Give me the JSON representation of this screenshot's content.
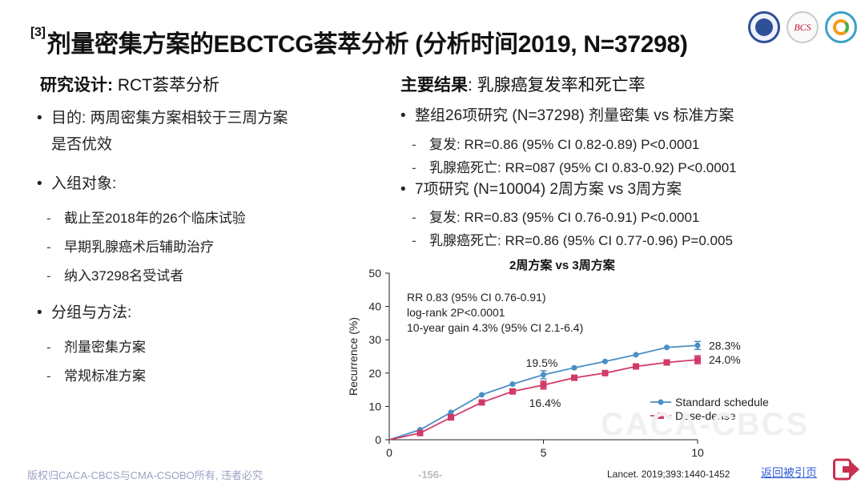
{
  "title": {
    "ref": "[3]",
    "text": "剂量密集方案的EBCTCG荟萃分析 (分析时间2019, N=37298)"
  },
  "logos": {
    "bcs_text": "BCS"
  },
  "left": {
    "design_label": "研究设计: ",
    "design_value": "RCT荟萃分析",
    "purpose_line1": "目的: 两周密集方案相较于三周方案",
    "purpose_line2": "是否优效",
    "subjects": "入组对象:",
    "subjects_items": [
      "截止至2018年的26个临床试验",
      "早期乳腺癌术后辅助治疗",
      "纳入37298名受试者"
    ],
    "groups": "分组与方法:",
    "groups_items": [
      "剂量密集方案",
      "常规标准方案"
    ]
  },
  "right": {
    "results_label": "主要结果",
    "results_value": ": 乳腺癌复发率和死亡率",
    "b1": "整组26项研究 (N=37298) 剂量密集 vs 标准方案",
    "b1_items": [
      "复发: RR=0.86 (95% CI 0.82-0.89) P<0.0001",
      "乳腺癌死亡: RR=087 (95% CI 0.83-0.92) P<0.0001"
    ],
    "b2": "7项研究 (N=10004) 2周方案 vs 3周方案",
    "b2_items": [
      "复发: RR=0.83 (95% CI 0.76-0.91) P<0.0001",
      "乳腺癌死亡: RR=0.86 (95% CI 0.77-0.96) P=0.005"
    ]
  },
  "chart_data": {
    "type": "line",
    "title": "2周方案 vs 3周方案",
    "ylabel": "Recurrence (%)",
    "xlabel": "",
    "xlim": [
      0,
      10
    ],
    "ylim": [
      0,
      50
    ],
    "xticks": [
      0,
      5,
      10
    ],
    "yticks": [
      0,
      10,
      20,
      30,
      40,
      50
    ],
    "annotations": [
      "RR 0.83 (95% CI 0.76-0.91)",
      "log-rank 2P<0.0001",
      "10-year gain 4.3% (95% CI 2.1-6.4)"
    ],
    "point_labels": [
      "19.5%",
      "16.4%",
      "28.3%",
      "24.0%"
    ],
    "series": [
      {
        "name": "Standard schedule",
        "color": "#4a8fc4",
        "marker": "circle",
        "x": [
          0,
          1,
          2,
          3,
          4,
          5,
          6,
          7,
          8,
          9,
          10
        ],
        "y": [
          0,
          3.0,
          8.2,
          13.5,
          16.7,
          19.5,
          21.6,
          23.5,
          25.5,
          27.7,
          28.3
        ]
      },
      {
        "name": "Dose-dense",
        "color": "#d23a66",
        "marker": "square",
        "x": [
          0,
          1,
          2,
          3,
          4,
          5,
          6,
          7,
          8,
          9,
          10
        ],
        "y": [
          0,
          2.0,
          6.7,
          11.2,
          14.5,
          16.4,
          18.6,
          20.0,
          22.0,
          23.2,
          24.0
        ]
      }
    ],
    "legend_position": "bottom-right"
  },
  "footer": {
    "copyright": "版权归CACA-CBCS与CMA-CSOBO所有, 违者必究",
    "page": "-156-",
    "reference": "Lancet. 2019;393:1440-1452",
    "back_link": "返回被引页",
    "watermark": "CACA-CBCS"
  },
  "colors": {
    "accent_red": "#d23a66",
    "accent_blue": "#4a8fc4",
    "link": "#2f5bd8"
  }
}
